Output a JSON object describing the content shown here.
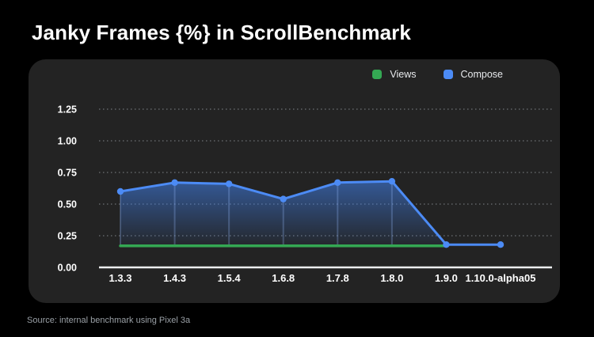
{
  "page": {
    "title": "Janky Frames {%} in ScrollBenchmark",
    "source_note": "Source: internal benchmark using Pixel 3a"
  },
  "colors": {
    "background": "#000000",
    "panel": "#232323",
    "views_green": "#34A853",
    "compose_blue": "#4C8BF5",
    "gridline": "#6E7276",
    "axis_line": "#ECEDEF",
    "tick_label": "#FFFFFF",
    "legend_text": "#E8EAED",
    "source_text": "#9AA0A6"
  },
  "chart_data": {
    "type": "line",
    "title": "Janky Frames {%} in ScrollBenchmark",
    "categories": [
      "1.3.3",
      "1.4.3",
      "1.5.4",
      "1.6.8",
      "1.7.8",
      "1.8.0",
      "1.9.0",
      "1.10.0-alpha05"
    ],
    "series": [
      {
        "name": "Views",
        "color": "#34A853",
        "values": [
          0.17,
          0.17,
          0.17,
          0.17,
          0.17,
          0.17,
          0.17,
          null
        ],
        "style": "flat line, no markers, no fill"
      },
      {
        "name": "Compose",
        "color": "#4C8BF5",
        "values": [
          0.6,
          0.67,
          0.66,
          0.54,
          0.67,
          0.68,
          0.18,
          0.18
        ],
        "style": "line with round markers and blue gradient area fill with vertical drop lines"
      }
    ],
    "xlabel": "",
    "ylabel": "",
    "ylim": [
      0,
      1.25
    ],
    "yticks": [
      0,
      0.25,
      0.5,
      0.75,
      1,
      1.25
    ],
    "ytick_format": "2-decimals",
    "grid": "dotted horizontal gridlines, solid baseline axis at 0.00",
    "legend_position": "top-right",
    "source": "Source: internal benchmark using Pixel 3a"
  }
}
